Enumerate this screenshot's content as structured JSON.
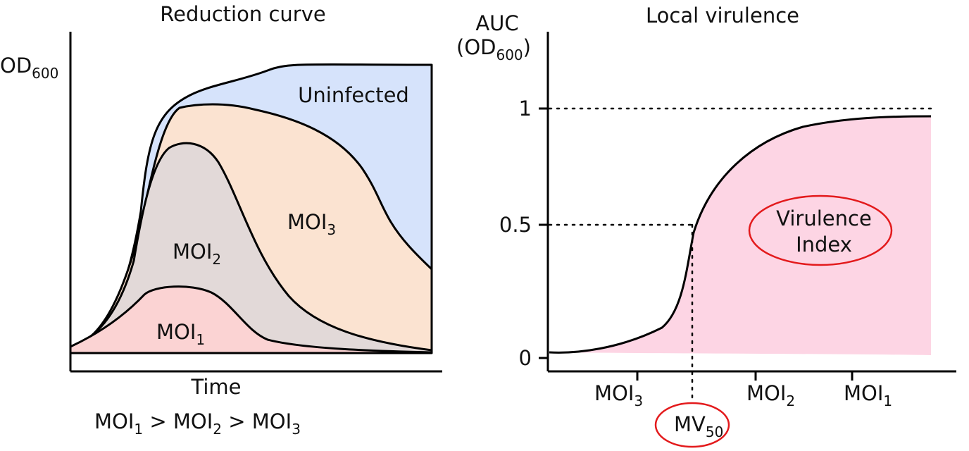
{
  "left_panel": {
    "title": "Reduction curve",
    "y_label": {
      "main": "OD",
      "sub": "600"
    },
    "x_label": "Time",
    "areas": {
      "uninfected": {
        "label": "Uninfected",
        "color": "#d6e3fb"
      },
      "moi3": {
        "label_main": "MOI",
        "label_sub": "3",
        "color": "#fbe3d1"
      },
      "moi2": {
        "label_main": "MOI",
        "label_sub": "2",
        "color": "#e2d9d8"
      },
      "moi1": {
        "label_main": "MOI",
        "label_sub": "1",
        "color": "#fbd3d3"
      }
    },
    "relation": {
      "t1": "MOI",
      "s1": "1",
      "gt1": " > ",
      "t2": "MOI",
      "s2": "2",
      "gt2": " > ",
      "t3": "MOI",
      "s3": "3"
    }
  },
  "right_panel": {
    "title": "Local virulence",
    "y_label": {
      "line1": "AUC",
      "open": "(OD",
      "sub": "600",
      "close": ")"
    },
    "y_ticks": [
      "1",
      "0.5",
      "0"
    ],
    "x_ticks": [
      {
        "main": "MOI",
        "sub": "3"
      },
      {
        "main": "MOI",
        "sub": "2"
      },
      {
        "main": "MOI",
        "sub": "1"
      }
    ],
    "fill_color": "#fdd5e4",
    "highlight_color": "#e31a1c",
    "virulence_index": {
      "line1": "Virulence",
      "line2": "Index"
    },
    "mv50": {
      "main": "MV",
      "sub": "50"
    }
  }
}
